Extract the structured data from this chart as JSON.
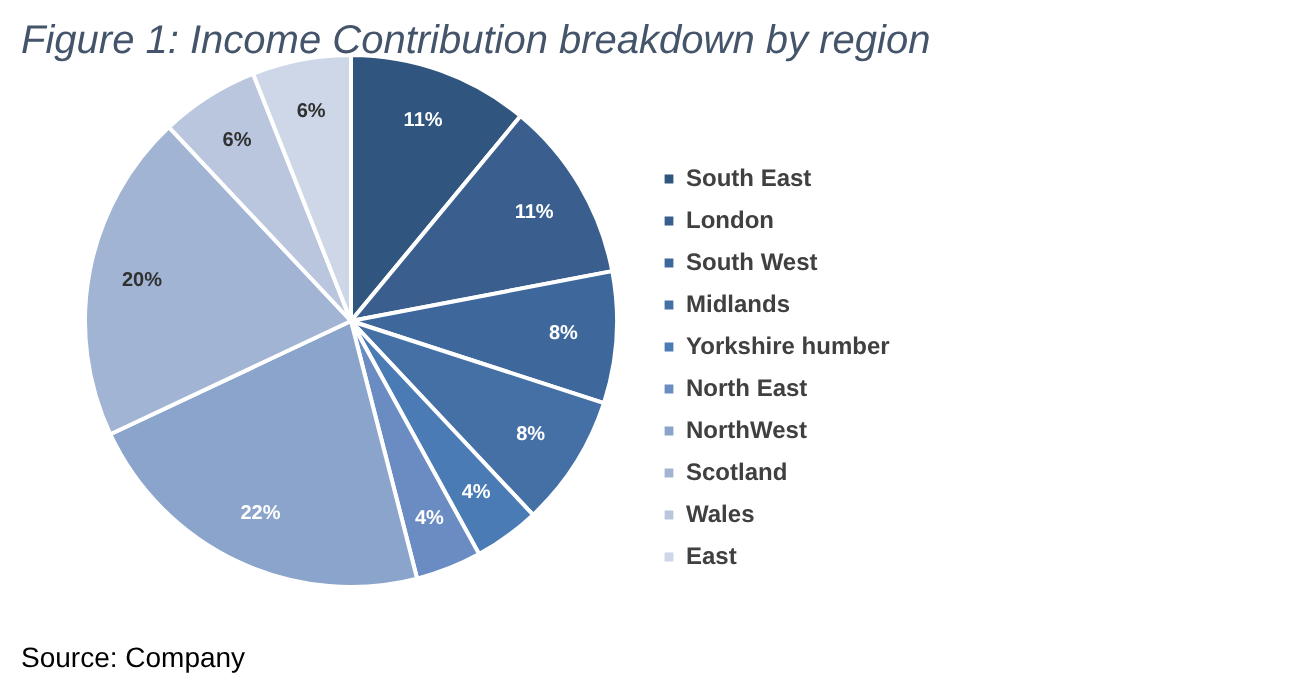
{
  "chart_data": {
    "type": "pie",
    "title": "Figure 1: Income Contribution breakdown by region",
    "categories": [
      "South East",
      "London",
      "South West",
      "Midlands",
      "Yorkshire humber",
      "North East",
      "NorthWest",
      "Scotland",
      "Wales",
      "East"
    ],
    "values": [
      11,
      11,
      8,
      8,
      4,
      4,
      22,
      20,
      6,
      6
    ],
    "value_labels": [
      "11%",
      "11%",
      "8%",
      "8%",
      "4%",
      "4%",
      "22%",
      "20%",
      "6%",
      "6%"
    ],
    "colors": [
      "#30557f",
      "#3a5f8e",
      "#3e679c",
      "#4470a6",
      "#4a7bb5",
      "#6a8cc2",
      "#8aa4cb",
      "#a1b4d3",
      "#b9c6de",
      "#cdd7e7"
    ],
    "legend": "right",
    "annotations": [
      "Source: Company"
    ]
  }
}
